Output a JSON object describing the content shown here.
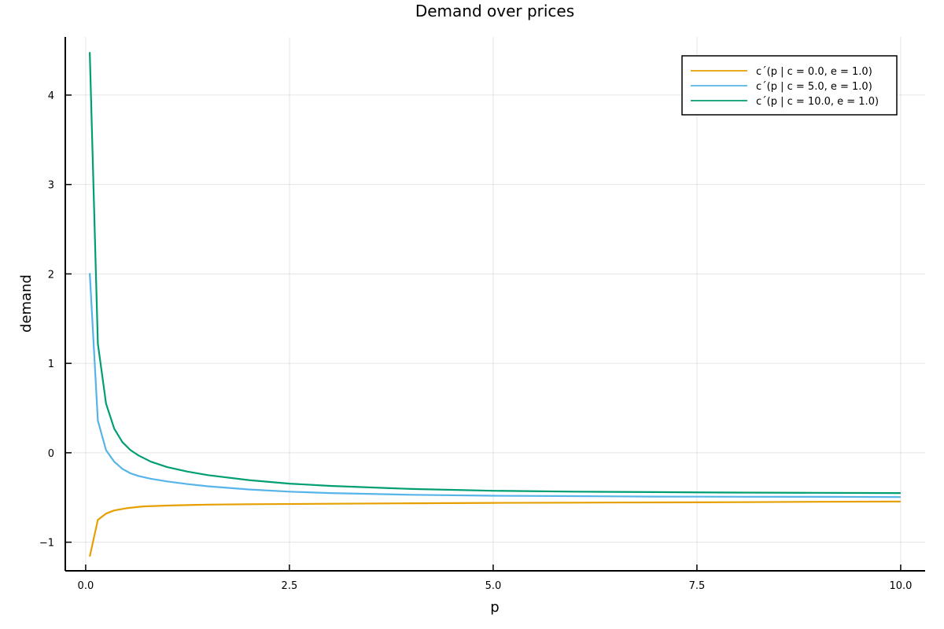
{
  "chart_data": {
    "type": "line",
    "title": "Demand over prices",
    "xlabel": "p",
    "ylabel": "demand",
    "xlim": [
      -0.25,
      10.3
    ],
    "ylim": [
      -1.32,
      4.65
    ],
    "xticks": [
      0.0,
      2.5,
      5.0,
      7.5,
      10.0
    ],
    "xtick_labels": [
      "0.0",
      "2.5",
      "5.0",
      "7.5",
      "10.0"
    ],
    "yticks": [
      -1,
      0,
      1,
      2,
      3,
      4
    ],
    "ytick_labels": [
      "−1",
      "0",
      "1",
      "2",
      "3",
      "4"
    ],
    "grid": true,
    "legend_position": "top-right",
    "series": [
      {
        "name": "c´(p | c = 0.0, e = 1.0)",
        "color": "#E69F00",
        "x": [
          0.05,
          0.15,
          0.25,
          0.35,
          0.5,
          0.7,
          1.0,
          1.5,
          2.0,
          3.0,
          4.0,
          5.0,
          6.0,
          7.0,
          8.0,
          9.0,
          10.0
        ],
        "y": [
          -1.16,
          -0.75,
          -0.68,
          -0.645,
          -0.62,
          -0.6,
          -0.59,
          -0.58,
          -0.575,
          -0.57,
          -0.565,
          -0.56,
          -0.558,
          -0.555,
          -0.552,
          -0.548,
          -0.545
        ]
      },
      {
        "name": "c´(p | c = 5.0, e = 1.0)",
        "color": "#56B4E9",
        "x": [
          0.05,
          0.15,
          0.25,
          0.35,
          0.45,
          0.55,
          0.65,
          0.8,
          1.0,
          1.25,
          1.5,
          2.0,
          2.5,
          3.0,
          4.0,
          5.0,
          6.0,
          7.0,
          8.0,
          9.0,
          10.0
        ],
        "y": [
          2.01,
          0.36,
          0.03,
          -0.1,
          -0.18,
          -0.23,
          -0.26,
          -0.29,
          -0.32,
          -0.35,
          -0.375,
          -0.41,
          -0.435,
          -0.45,
          -0.47,
          -0.48,
          -0.485,
          -0.49,
          -0.492,
          -0.493,
          -0.495
        ]
      },
      {
        "name": "c´(p | c = 10.0, e = 1.0)",
        "color": "#009E73",
        "x": [
          0.05,
          0.15,
          0.25,
          0.35,
          0.45,
          0.55,
          0.65,
          0.8,
          1.0,
          1.25,
          1.5,
          2.0,
          2.5,
          3.0,
          4.0,
          5.0,
          6.0,
          7.0,
          8.0,
          9.0,
          10.0
        ],
        "y": [
          4.48,
          1.22,
          0.55,
          0.27,
          0.12,
          0.03,
          -0.03,
          -0.1,
          -0.16,
          -0.21,
          -0.25,
          -0.305,
          -0.345,
          -0.37,
          -0.405,
          -0.425,
          -0.435,
          -0.44,
          -0.445,
          -0.448,
          -0.45
        ]
      }
    ]
  }
}
